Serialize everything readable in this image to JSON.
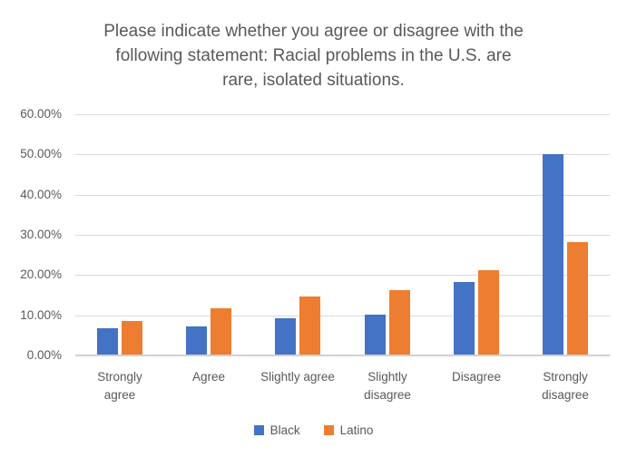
{
  "chart_data": {
    "type": "bar",
    "title": "Please indicate whether you agree or disagree with the following statement: Racial problems in the U.S. are rare, isolated situations.",
    "title_lines": [
      "Please indicate whether you agree or disagree with the",
      "following statement: Racial problems in the U.S. are",
      "rare, isolated situations."
    ],
    "categories": [
      "Strongly agree",
      "Agree",
      "Slightly agree",
      "Slightly disagree",
      "Disagree",
      "Strongly disagree"
    ],
    "category_label_lines": [
      [
        "Strongly",
        "agree"
      ],
      [
        "Agree"
      ],
      [
        "Slightly agree"
      ],
      [
        "Slightly",
        "disagree"
      ],
      [
        "Disagree"
      ],
      [
        "Strongly",
        "disagree"
      ]
    ],
    "series": [
      {
        "name": "Black",
        "color": "#4472C4",
        "values": [
          6.5,
          7.0,
          9.0,
          10.0,
          18.0,
          49.8
        ]
      },
      {
        "name": "Latino",
        "color": "#ED7D31",
        "values": [
          8.4,
          11.4,
          14.5,
          16.0,
          21.0,
          28.0
        ]
      }
    ],
    "xlabel": "",
    "ylabel": "",
    "y_axis": {
      "min": 0,
      "max": 60,
      "step": 10,
      "tick_labels": [
        "0.00%",
        "10.00%",
        "20.00%",
        "30.00%",
        "40.00%",
        "50.00%",
        "60.00%"
      ]
    },
    "grid": true,
    "legend_position": "bottom",
    "colors": {
      "text": "#595959",
      "gridline": "#D9D9D9",
      "axis_line": "#D0D0D0",
      "background": "#FFFFFF"
    }
  }
}
